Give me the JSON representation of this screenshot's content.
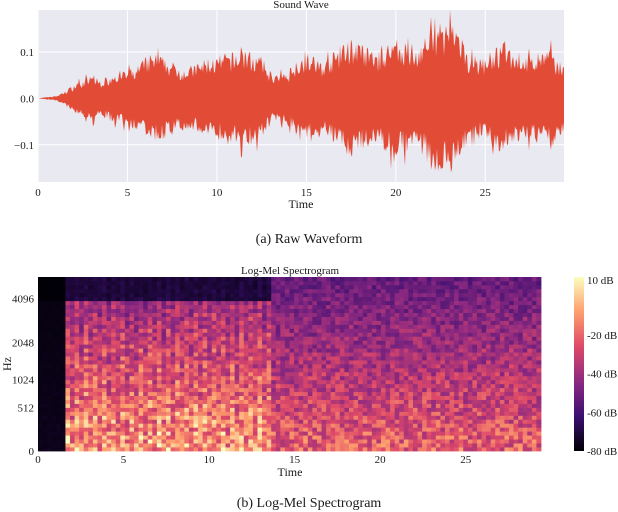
{
  "chart_data": [
    {
      "type": "line",
      "title": "Sound Wave",
      "xlabel": "Time",
      "ylabel": "",
      "caption": "(a) Raw Waveform",
      "xlim": [
        0,
        29.4
      ],
      "ylim": [
        -0.18,
        0.19
      ],
      "xticks": [
        0,
        5,
        10,
        15,
        20,
        25
      ],
      "yticks": [
        0.1,
        0.0,
        -0.1
      ],
      "ytick_labels": [
        "0.1",
        "0.0",
        "−0.1"
      ],
      "grid": true,
      "background": "#e9e9f2",
      "series": [
        {
          "color": "#e24b35",
          "x": [
            0,
            1,
            1.5,
            2,
            2.5,
            3,
            3.5,
            4,
            4.5,
            5,
            5.5,
            6,
            6.5,
            7,
            7.5,
            8,
            8.5,
            9,
            9.5,
            10,
            10.5,
            11,
            11.5,
            12,
            12.5,
            13,
            13.5,
            14,
            14.5,
            15,
            15.5,
            16,
            16.5,
            17,
            17.5,
            18,
            18.5,
            19,
            19.5,
            20,
            20.5,
            21,
            21.5,
            22,
            22.5,
            23,
            23.5,
            24,
            24.5,
            25,
            25.5,
            26,
            26.5,
            27,
            27.5,
            28,
            28.5,
            29,
            29.4
          ],
          "envelope": [
            0.0,
            0.005,
            0.015,
            0.03,
            0.04,
            0.05,
            0.04,
            0.05,
            0.06,
            0.06,
            0.07,
            0.09,
            0.1,
            0.09,
            0.08,
            0.07,
            0.07,
            0.08,
            0.09,
            0.09,
            0.1,
            0.1,
            0.11,
            0.1,
            0.09,
            0.06,
            0.05,
            0.06,
            0.09,
            0.1,
            0.09,
            0.08,
            0.1,
            0.12,
            0.13,
            0.12,
            0.11,
            0.1,
            0.12,
            0.13,
            0.12,
            0.1,
            0.13,
            0.15,
            0.16,
            0.17,
            0.14,
            0.1,
            0.09,
            0.09,
            0.11,
            0.12,
            0.11,
            0.1,
            0.09,
            0.1,
            0.11,
            0.09,
            0.08
          ]
        }
      ]
    },
    {
      "type": "heatmap",
      "title": "Log-Mel Spectrogram",
      "xlabel": "Time",
      "ylabel": "Hz",
      "caption": "(b) Log-Mel Spectrogram",
      "xlim": [
        0,
        29.4
      ],
      "xticks": [
        0,
        5,
        10,
        15,
        20,
        25
      ],
      "yticks": [
        0,
        512,
        1024,
        2048,
        4096
      ],
      "colorbar": {
        "range_db": [
          -80,
          10
        ],
        "ticks": [
          10,
          -20,
          -40,
          -60,
          -80
        ],
        "tick_labels": [
          "10 dB",
          "-20 dB",
          "-40 dB",
          "-60 dB",
          "-80 dB"
        ],
        "colormap": [
          "#000004",
          "#3b0f70",
          "#8c2981",
          "#de4968",
          "#fe9f6d",
          "#fcfdbf"
        ]
      }
    }
  ]
}
